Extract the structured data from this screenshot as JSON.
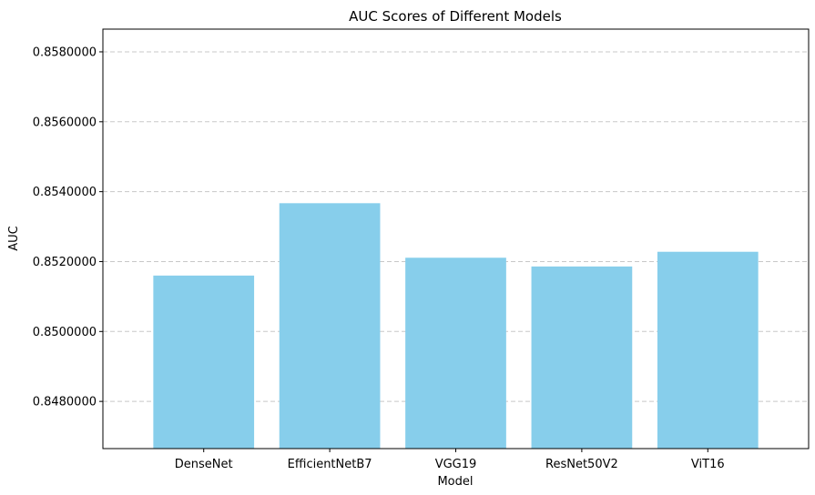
{
  "chart_data": {
    "type": "bar",
    "title": "AUC Scores of Different Models",
    "xlabel": "Model",
    "ylabel": "AUC",
    "categories": [
      "DenseNet",
      "EfficientNetB7",
      "VGG19",
      "ResNet50V2",
      "ViT16"
    ],
    "values": [
      0.8516,
      0.85367,
      0.85211,
      0.85186,
      0.85228
    ],
    "ylim": [
      0.84665,
      0.85865
    ],
    "yticks": [
      0.848,
      0.85,
      0.852,
      0.854,
      0.856,
      0.858
    ],
    "ytick_labels": [
      "0.8480000",
      "0.8500000",
      "0.8520000",
      "0.8540000",
      "0.8560000",
      "0.8580000"
    ],
    "grid": "y-dashed",
    "legend": "none",
    "colors": {
      "bar": "#87ceeb",
      "grid": "#c8c8c8",
      "axis": "#000000"
    }
  }
}
